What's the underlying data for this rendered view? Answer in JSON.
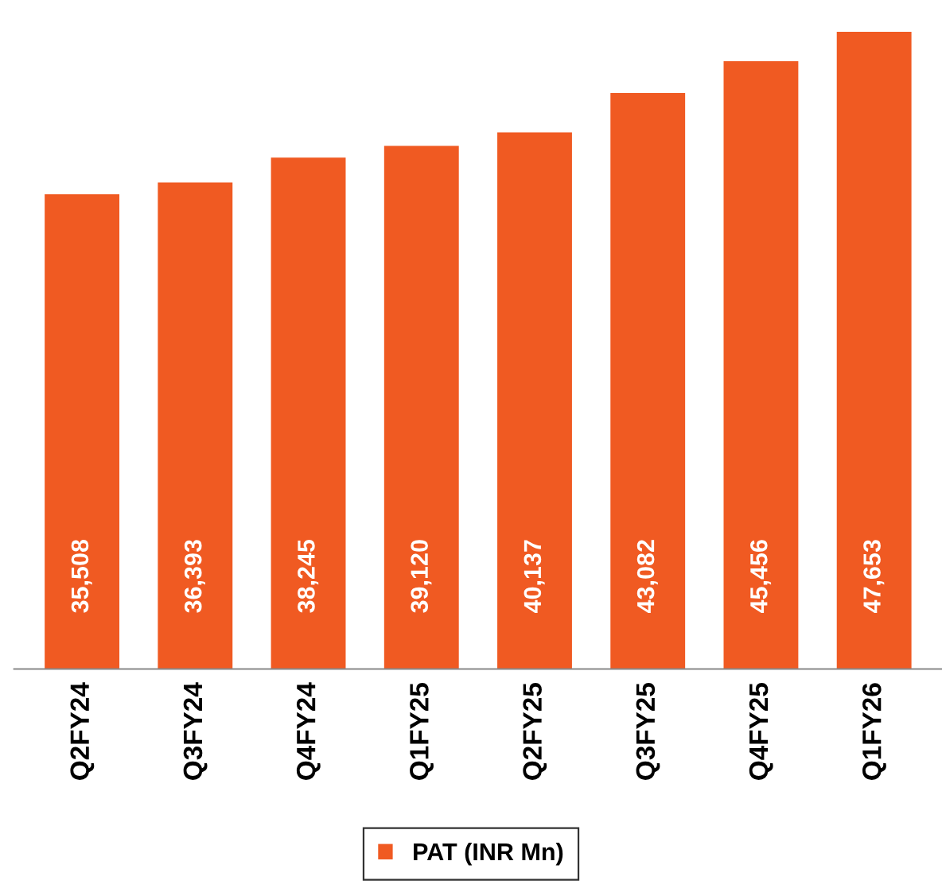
{
  "chart_data": {
    "type": "bar",
    "categories": [
      "Q2FY24",
      "Q3FY24",
      "Q4FY24",
      "Q1FY25",
      "Q2FY25",
      "Q3FY25",
      "Q4FY25",
      "Q1FY26"
    ],
    "series": [
      {
        "name": "PAT (INR Mn)",
        "color": "#f05a22",
        "values": [
          35508,
          36393,
          38245,
          39120,
          40137,
          43082,
          45456,
          47653
        ],
        "value_labels": [
          "35,508",
          "36,393",
          "38,245",
          "39,120",
          "40,137",
          "43,082",
          "45,456",
          "47,653"
        ]
      }
    ],
    "tick_labels": "x",
    "legend": "bottom"
  }
}
